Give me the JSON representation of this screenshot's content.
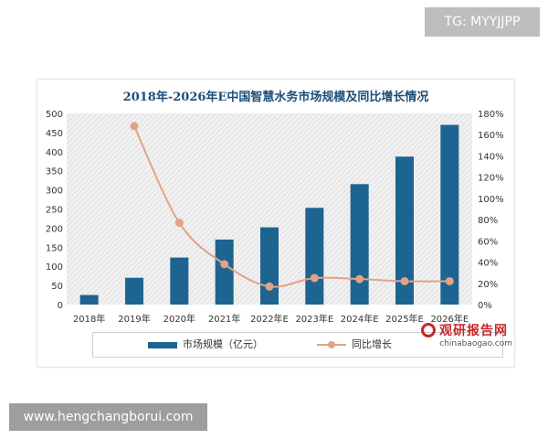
{
  "badge": {
    "text": "TG: MYYJJPP"
  },
  "footer": {
    "url": "www.hengchangborui.com"
  },
  "watermark": {
    "name": "观研报告网",
    "domain": "chinabaogao.com"
  },
  "chart_data": {
    "type": "bar",
    "title": "2018年-2026年E中国智慧水务市场规模及同比增长情况",
    "categories": [
      "2018年",
      "2019年",
      "2020年",
      "2021年",
      "2022年E",
      "2023年E",
      "2024年E",
      "2025年E",
      "2026年E"
    ],
    "series": [
      {
        "name": "市场规模（亿元）",
        "type": "bar",
        "axis": "left",
        "color": "#1e6490",
        "values": [
          25,
          70,
          123,
          170,
          202,
          253,
          315,
          387,
          470
        ]
      },
      {
        "name": "同比增长",
        "type": "line",
        "axis": "right",
        "color": "#e2a386",
        "values": [
          null,
          168,
          77,
          38,
          17,
          25,
          24,
          22,
          22
        ]
      }
    ],
    "y_left": {
      "min": 0,
      "max": 500,
      "ticks": [
        "0",
        "50",
        "100",
        "150",
        "200",
        "250",
        "300",
        "350",
        "400",
        "450",
        "500"
      ]
    },
    "y_right": {
      "min": 0,
      "max": 180,
      "ticks": [
        "0%",
        "20%",
        "40%",
        "60%",
        "80%",
        "100%",
        "120%",
        "140%",
        "160%",
        "180%"
      ]
    },
    "legend_position": "bottom"
  }
}
